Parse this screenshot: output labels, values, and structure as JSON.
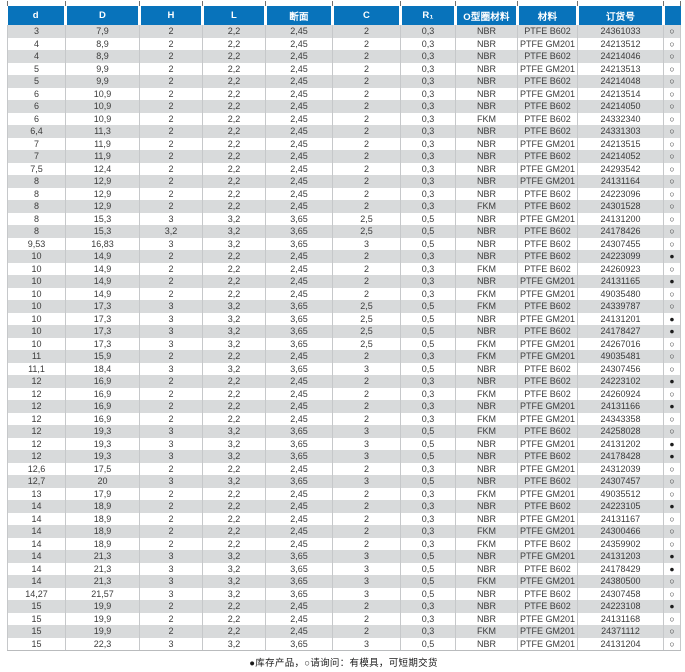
{
  "table": {
    "columns": [
      "d",
      "D",
      "H",
      "L",
      "断面",
      "C",
      "R₁",
      "O型圈材料",
      "材料",
      "订货号",
      ""
    ],
    "rows": [
      [
        "3",
        "7,9",
        "2",
        "2,2",
        "2,45",
        "2",
        "0,3",
        "NBR",
        "PTFE B602",
        "24361033",
        "○"
      ],
      [
        "4",
        "8,9",
        "2",
        "2,2",
        "2,45",
        "2",
        "0,3",
        "NBR",
        "PTFE GM201",
        "24213512",
        "○"
      ],
      [
        "4",
        "8,9",
        "2",
        "2,2",
        "2,45",
        "2",
        "0,3",
        "NBR",
        "PTFE B602",
        "24214046",
        "○"
      ],
      [
        "5",
        "9,9",
        "2",
        "2,2",
        "2,45",
        "2",
        "0,3",
        "NBR",
        "PTFE GM201",
        "24213513",
        "○"
      ],
      [
        "5",
        "9,9",
        "2",
        "2,2",
        "2,45",
        "2",
        "0,3",
        "NBR",
        "PTFE B602",
        "24214048",
        "○"
      ],
      [
        "6",
        "10,9",
        "2",
        "2,2",
        "2,45",
        "2",
        "0,3",
        "NBR",
        "PTFE GM201",
        "24213514",
        "○"
      ],
      [
        "6",
        "10,9",
        "2",
        "2,2",
        "2,45",
        "2",
        "0,3",
        "NBR",
        "PTFE B602",
        "24214050",
        "○"
      ],
      [
        "6",
        "10,9",
        "2",
        "2,2",
        "2,45",
        "2",
        "0,3",
        "FKM",
        "PTFE B602",
        "24332340",
        "○"
      ],
      [
        "6,4",
        "11,3",
        "2",
        "2,2",
        "2,45",
        "2",
        "0,3",
        "NBR",
        "PTFE B602",
        "24331303",
        "○"
      ],
      [
        "7",
        "11,9",
        "2",
        "2,2",
        "2,45",
        "2",
        "0,3",
        "NBR",
        "PTFE GM201",
        "24213515",
        "○"
      ],
      [
        "7",
        "11,9",
        "2",
        "2,2",
        "2,45",
        "2",
        "0,3",
        "NBR",
        "PTFE B602",
        "24214052",
        "○"
      ],
      [
        "7,5",
        "12,4",
        "2",
        "2,2",
        "2,45",
        "2",
        "0,3",
        "NBR",
        "PTFE GM201",
        "24293542",
        "○"
      ],
      [
        "8",
        "12,9",
        "2",
        "2,2",
        "2,45",
        "2",
        "0,3",
        "NBR",
        "PTFE GM201",
        "24131164",
        "○"
      ],
      [
        "8",
        "12,9",
        "2",
        "2,2",
        "2,45",
        "2",
        "0,3",
        "NBR",
        "PTFE B602",
        "24223096",
        "○"
      ],
      [
        "8",
        "12,9",
        "2",
        "2,2",
        "2,45",
        "2",
        "0,3",
        "FKM",
        "PTFE B602",
        "24301528",
        "○"
      ],
      [
        "8",
        "15,3",
        "3",
        "3,2",
        "3,65",
        "2,5",
        "0,5",
        "NBR",
        "PTFE GM201",
        "24131200",
        "○"
      ],
      [
        "8",
        "15,3",
        "3,2",
        "3,2",
        "3,65",
        "2,5",
        "0,5",
        "NBR",
        "PTFE B602",
        "24178426",
        "○"
      ],
      [
        "9,53",
        "16,83",
        "3",
        "3,2",
        "3,65",
        "3",
        "0,5",
        "NBR",
        "PTFE B602",
        "24307455",
        "○"
      ],
      [
        "10",
        "14,9",
        "2",
        "2,2",
        "2,45",
        "2",
        "0,3",
        "NBR",
        "PTFE B602",
        "24223099",
        "●"
      ],
      [
        "10",
        "14,9",
        "2",
        "2,2",
        "2,45",
        "2",
        "0,3",
        "FKM",
        "PTFE B602",
        "24260923",
        "○"
      ],
      [
        "10",
        "14,9",
        "2",
        "2,2",
        "2,45",
        "2",
        "0,3",
        "NBR",
        "PTFE GM201",
        "24131165",
        "●"
      ],
      [
        "10",
        "14,9",
        "2",
        "2,2",
        "2,45",
        "2",
        "0,3",
        "FKM",
        "PTFE GM201",
        "49035480",
        "○"
      ],
      [
        "10",
        "17,3",
        "3",
        "3,2",
        "3,65",
        "2,5",
        "0,5",
        "FKM",
        "PTFE B602",
        "24339787",
        "○"
      ],
      [
        "10",
        "17,3",
        "3",
        "3,2",
        "3,65",
        "2,5",
        "0,5",
        "NBR",
        "PTFE GM201",
        "24131201",
        "●"
      ],
      [
        "10",
        "17,3",
        "3",
        "3,2",
        "3,65",
        "2,5",
        "0,5",
        "NBR",
        "PTFE B602",
        "24178427",
        "●"
      ],
      [
        "10",
        "17,3",
        "3",
        "3,2",
        "3,65",
        "2,5",
        "0,5",
        "FKM",
        "PTFE GM201",
        "24267016",
        "○"
      ],
      [
        "11",
        "15,9",
        "2",
        "2,2",
        "2,45",
        "2",
        "0,3",
        "FKM",
        "PTFE GM201",
        "49035481",
        "○"
      ],
      [
        "11,1",
        "18,4",
        "3",
        "3,2",
        "3,65",
        "3",
        "0,5",
        "NBR",
        "PTFE B602",
        "24307456",
        "○"
      ],
      [
        "12",
        "16,9",
        "2",
        "2,2",
        "2,45",
        "2",
        "0,3",
        "NBR",
        "PTFE B602",
        "24223102",
        "●"
      ],
      [
        "12",
        "16,9",
        "2",
        "2,2",
        "2,45",
        "2",
        "0,3",
        "FKM",
        "PTFE B602",
        "24260924",
        "○"
      ],
      [
        "12",
        "16,9",
        "2",
        "2,2",
        "2,45",
        "2",
        "0,3",
        "NBR",
        "PTFE GM201",
        "24131166",
        "●"
      ],
      [
        "12",
        "16,9",
        "2",
        "2,2",
        "2,45",
        "2",
        "0,3",
        "FKM",
        "PTFE GM201",
        "24343358",
        "○"
      ],
      [
        "12",
        "19,3",
        "3",
        "3,2",
        "3,65",
        "3",
        "0,5",
        "FKM",
        "PTFE B602",
        "24258028",
        "○"
      ],
      [
        "12",
        "19,3",
        "3",
        "3,2",
        "3,65",
        "3",
        "0,5",
        "NBR",
        "PTFE GM201",
        "24131202",
        "●"
      ],
      [
        "12",
        "19,3",
        "3",
        "3,2",
        "3,65",
        "3",
        "0,5",
        "NBR",
        "PTFE B602",
        "24178428",
        "●"
      ],
      [
        "12,6",
        "17,5",
        "2",
        "2,2",
        "2,45",
        "2",
        "0,3",
        "NBR",
        "PTFE GM201",
        "24312039",
        "○"
      ],
      [
        "12,7",
        "20",
        "3",
        "3,2",
        "3,65",
        "3",
        "0,5",
        "NBR",
        "PTFE B602",
        "24307457",
        "○"
      ],
      [
        "13",
        "17,9",
        "2",
        "2,2",
        "2,45",
        "2",
        "0,3",
        "FKM",
        "PTFE GM201",
        "49035512",
        "○"
      ],
      [
        "14",
        "18,9",
        "2",
        "2,2",
        "2,45",
        "2",
        "0,3",
        "NBR",
        "PTFE B602",
        "24223105",
        "●"
      ],
      [
        "14",
        "18,9",
        "2",
        "2,2",
        "2,45",
        "2",
        "0,3",
        "NBR",
        "PTFE GM201",
        "24131167",
        "○"
      ],
      [
        "14",
        "18,9",
        "2",
        "2,2",
        "2,45",
        "2",
        "0,3",
        "FKM",
        "PTFE GM201",
        "24300466",
        "○"
      ],
      [
        "14",
        "18,9",
        "2",
        "2,2",
        "2,45",
        "2",
        "0,3",
        "FKM",
        "PTFE B602",
        "24359902",
        "○"
      ],
      [
        "14",
        "21,3",
        "3",
        "3,2",
        "3,65",
        "3",
        "0,5",
        "NBR",
        "PTFE GM201",
        "24131203",
        "●"
      ],
      [
        "14",
        "21,3",
        "3",
        "3,2",
        "3,65",
        "3",
        "0,5",
        "NBR",
        "PTFE B602",
        "24178429",
        "●"
      ],
      [
        "14",
        "21,3",
        "3",
        "3,2",
        "3,65",
        "3",
        "0,5",
        "FKM",
        "PTFE GM201",
        "24380500",
        "○"
      ],
      [
        "14,27",
        "21,57",
        "3",
        "3,2",
        "3,65",
        "3",
        "0,5",
        "NBR",
        "PTFE B602",
        "24307458",
        "○"
      ],
      [
        "15",
        "19,9",
        "2",
        "2,2",
        "2,45",
        "2",
        "0,3",
        "NBR",
        "PTFE B602",
        "24223108",
        "●"
      ],
      [
        "15",
        "19,9",
        "2",
        "2,2",
        "2,45",
        "2",
        "0,3",
        "NBR",
        "PTFE GM201",
        "24131168",
        "○"
      ],
      [
        "15",
        "19,9",
        "2",
        "2,2",
        "2,45",
        "2",
        "0,3",
        "FKM",
        "PTFE GM201",
        "24371112",
        "○"
      ],
      [
        "15",
        "22,3",
        "3",
        "3,2",
        "3,65",
        "3",
        "0,5",
        "NBR",
        "PTFE GM201",
        "24131204",
        "○"
      ]
    ]
  },
  "legend": "●库存产品，○请询问：有模具，可短期交货",
  "symbols": {
    "stock": "●",
    "on_request": "○"
  },
  "colors": {
    "header_bg": "#0873bb",
    "header_text": "#ffffff",
    "row_alt_bg": "#d8dadb"
  }
}
